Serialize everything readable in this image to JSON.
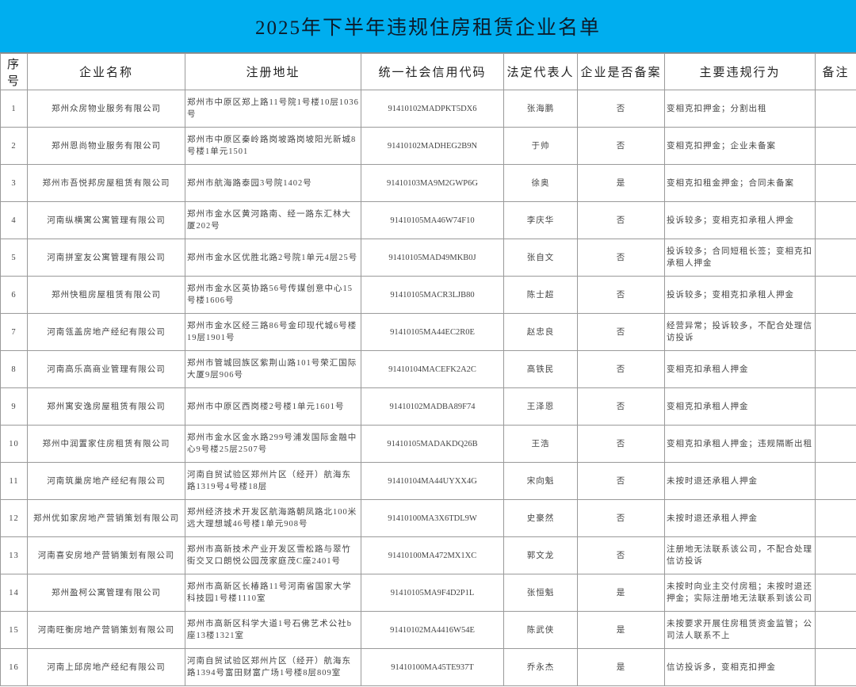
{
  "title": "2025年下半年违规住房租赁企业名单",
  "colors": {
    "title_bar": "#00aeef",
    "border": "#9a9a9a"
  },
  "columns": [
    "序号",
    "企业名称",
    "注册地址",
    "统一社会信用代码",
    "法定代表人",
    "企业是否备案",
    "主要违规行为",
    "备注"
  ],
  "rows": [
    {
      "no": "1",
      "name": "郑州众房物业服务有限公司",
      "address": "郑州市中原区郑上路11号院1号楼10层1036号",
      "code": "91410102MADPKT5DX6",
      "rep": "张海鹏",
      "filed": "否",
      "violation": "变相克扣押金；分割出租",
      "note": ""
    },
    {
      "no": "2",
      "name": "郑州恩尚物业服务有限公司",
      "address": "郑州市中原区秦岭路岗坡路岗坡阳光新城8号楼1单元1501",
      "code": "91410102MADHEG2B9N",
      "rep": "于帅",
      "filed": "否",
      "violation": "变相克扣押金；企业未备案",
      "note": ""
    },
    {
      "no": "3",
      "name": "郑州市吾悦邦房屋租赁有限公司",
      "address": "郑州市航海路泰园3号院1402号",
      "code": "91410103MA9M2GWP6G",
      "rep": "徐奥",
      "filed": "是",
      "violation": "变相克扣租金押金；合同未备案",
      "note": ""
    },
    {
      "no": "4",
      "name": "河南纵横寓公寓管理有限公司",
      "address": "郑州市金水区黄河路南、经一路东汇林大厦202号",
      "code": "91410105MA46W74F10",
      "rep": "李庆华",
      "filed": "否",
      "violation": "投诉较多；变相克扣承租人押金",
      "note": ""
    },
    {
      "no": "5",
      "name": "河南拼室友公寓管理有限公司",
      "address": "郑州市金水区优胜北路2号院1单元4层25号",
      "code": "91410105MAD49MKB0J",
      "rep": "张自文",
      "filed": "否",
      "violation": "投诉较多；合同短租长签；变相克扣承租人押金",
      "note": ""
    },
    {
      "no": "6",
      "name": "郑州快租房屋租赁有限公司",
      "address": "郑州市金水区英协路56号传媒创意中心15号楼1606号",
      "code": "91410105MACR3LJB80",
      "rep": "陈士超",
      "filed": "否",
      "violation": "投诉较多；变相克扣承租人押金",
      "note": ""
    },
    {
      "no": "7",
      "name": "河南瓴盖房地产经纪有限公司",
      "address": "郑州市金水区经三路86号金印现代城6号楼19层1901号",
      "code": "91410105MA44EC2R0E",
      "rep": "赵忠良",
      "filed": "否",
      "violation": "经营异常；投诉较多，不配合处理信访投诉",
      "note": ""
    },
    {
      "no": "8",
      "name": "河南高乐高商业管理有限公司",
      "address": "郑州市管城回族区紫荆山路101号荣汇国际大厦9层906号",
      "code": "91410104MACEFK2A2C",
      "rep": "高铁民",
      "filed": "否",
      "violation": "变相克扣承租人押金",
      "note": ""
    },
    {
      "no": "9",
      "name": "郑州寓安逸房屋租赁有限公司",
      "address": "郑州市中原区西岗楼2号楼1单元1601号",
      "code": "91410102MADBA89F74",
      "rep": "王泽恩",
      "filed": "否",
      "violation": "变相克扣承租人押金",
      "note": ""
    },
    {
      "no": "10",
      "name": "郑州中润置家住房租赁有限公司",
      "address": "郑州市金水区金水路299号浦发国际金融中心9号楼25层2507号",
      "code": "91410105MADAKDQ26B",
      "rep": "王浩",
      "filed": "否",
      "violation": "变相克扣承租人押金；违规隔断出租",
      "note": ""
    },
    {
      "no": "11",
      "name": "河南筑巢房地产经纪有限公司",
      "address": "河南自贸试验区郑州片区（经开）航海东路1319号4号楼18层",
      "code": "91410104MA44UYXX4G",
      "rep": "宋向魁",
      "filed": "否",
      "violation": "未按时退还承租人押金",
      "note": ""
    },
    {
      "no": "12",
      "name": "郑州优如家房地产营销策划有限公司",
      "address": "郑州经济技术开发区航海路朝凤路北100米远大理想城46号楼1单元908号",
      "code": "91410100MA3X6TDL9W",
      "rep": "史豪然",
      "filed": "否",
      "violation": "未按时退还承租人押金",
      "note": ""
    },
    {
      "no": "13",
      "name": "河南喜安房地产营销策划有限公司",
      "address": "郑州市高新技术产业开发区雪松路与翠竹街交叉口朗悦公园茂家庭茂C座2401号",
      "code": "91410100MA472MX1XC",
      "rep": "郭文龙",
      "filed": "否",
      "violation": "注册地无法联系该公司，不配合处理信访投诉",
      "note": ""
    },
    {
      "no": "14",
      "name": "郑州盈柯公寓管理有限公司",
      "address": "郑州市高新区长椿路11号河南省国家大学科技园1号楼1110室",
      "code": "91410105MA9F4D2P1L",
      "rep": "张恒魁",
      "filed": "是",
      "violation": "未按时向业主交付房租；未按时退还押金；实际注册地无法联系到该公司",
      "note": ""
    },
    {
      "no": "15",
      "name": "河南旺衡房地产营销策划有限公司",
      "address": "郑州市高新区科学大道1号石佛艺术公社b座13楼1321室",
      "code": "91410102MA4416W54E",
      "rep": "陈武侠",
      "filed": "是",
      "violation": "未按要求开展住房租赁资金监管；公司法人联系不上",
      "note": ""
    },
    {
      "no": "16",
      "name": "河南上邱房地产经纪有限公司",
      "address": "河南自贸试验区郑州片区（经开）航海东路1394号富田财富广场1号楼8层809室",
      "code": "91410100MA45TE937T",
      "rep": "乔永杰",
      "filed": "是",
      "violation": "信访投诉多，变相克扣押金",
      "note": ""
    }
  ]
}
